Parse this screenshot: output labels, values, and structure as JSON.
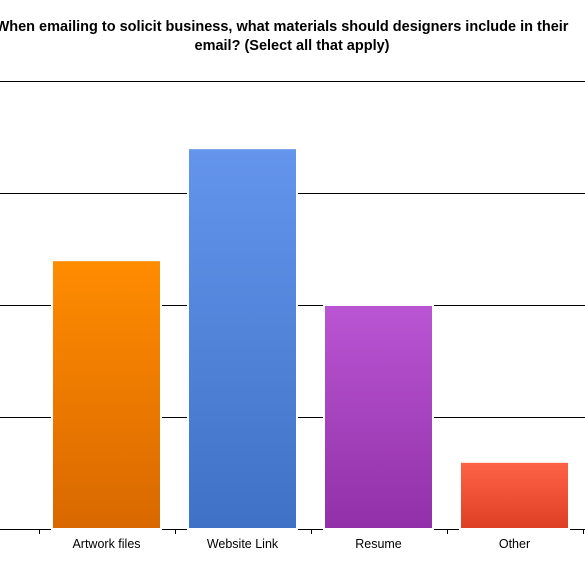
{
  "chart_data": {
    "type": "bar",
    "title_lines": [
      "When emailing to solicit business, what materials should designers include in their",
      "email? (Select all that apply)"
    ],
    "categories": [
      "Artwork files",
      "Website Link",
      "Resume",
      "Other"
    ],
    "values": [
      60,
      85,
      50,
      15
    ],
    "ylim": [
      0,
      100
    ],
    "yticks": [
      0,
      25,
      50,
      75,
      100
    ],
    "grid": true,
    "legend": "none",
    "colors": [
      {
        "top": "#FF8C00",
        "bottom": "#D96800"
      },
      {
        "top": "#6495ED",
        "bottom": "#3F72C6"
      },
      {
        "top": "#BA55D3",
        "bottom": "#9130A8"
      },
      {
        "top": "#FF6347",
        "bottom": "#DD3F25"
      }
    ]
  }
}
